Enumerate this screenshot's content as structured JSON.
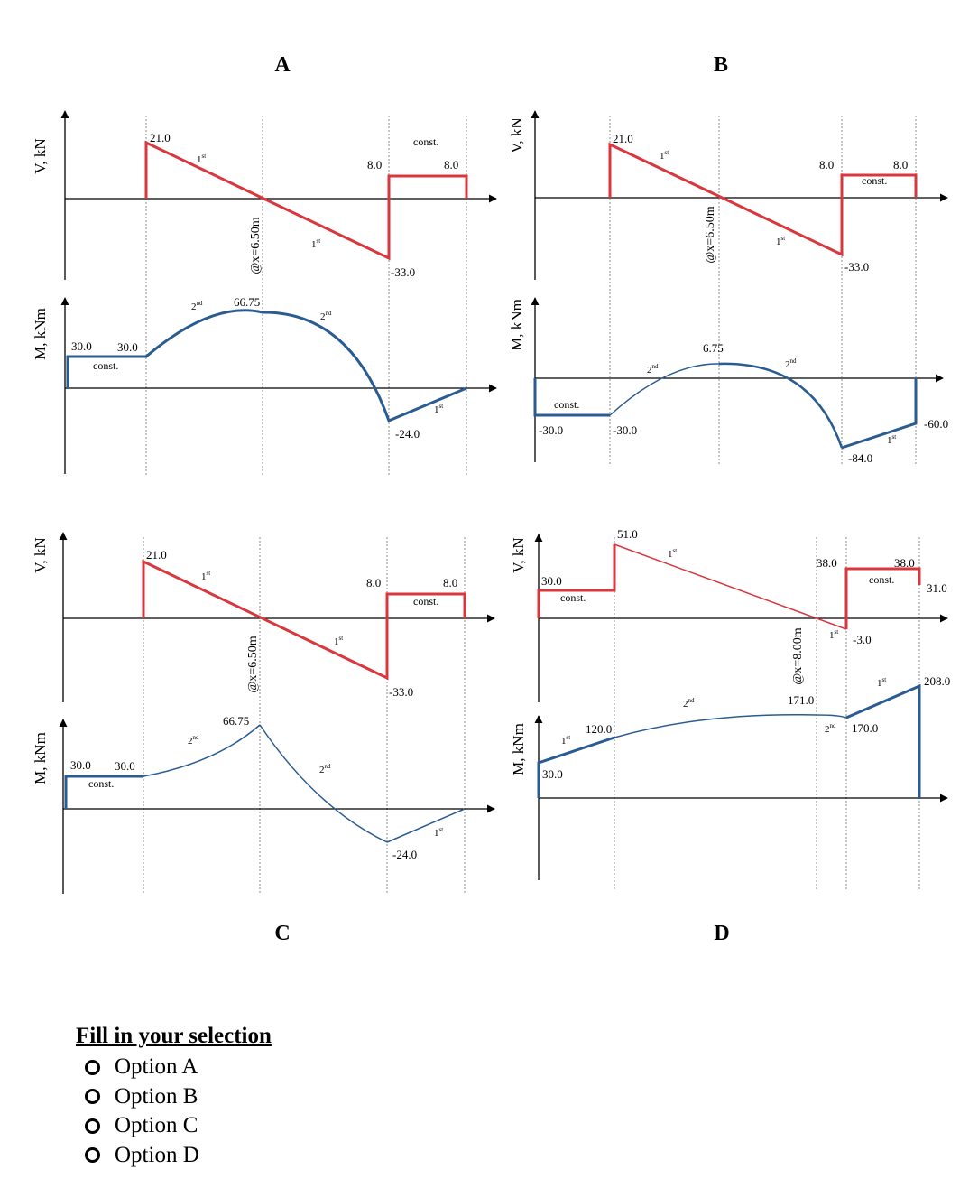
{
  "options": {
    "A": {
      "title": "A",
      "shear": {
        "axis_label": "V, kN",
        "labels": {
          "v1": "21.0",
          "deg1": "1",
          "deg2": "1",
          "v8a": "8.0",
          "v8b": "8.0",
          "vneg": "-33.0",
          "const": "const."
        },
        "xlabel": "@x=6.50m"
      },
      "moment": {
        "axis_label": "M, kNm",
        "labels": {
          "m1": "30.0",
          "m2": "30.0",
          "const": "const.",
          "max": "66.75",
          "deg_a": "2",
          "deg_b": "2",
          "deg_c": "1",
          "min": "-24.0"
        }
      }
    },
    "B": {
      "title": "B",
      "shear": {
        "axis_label": "V, kN",
        "labels": {
          "v1": "21.0",
          "deg1": "1",
          "deg2": "1",
          "v8a": "8.0",
          "v8b": "8.0",
          "vneg": "-33.0",
          "const": "const."
        },
        "xlabel": "@x=6.50m"
      },
      "moment": {
        "axis_label": "M, kNm",
        "labels": {
          "const": "const.",
          "m1": "-30.0",
          "m2": "-30.0",
          "max": "6.75",
          "deg_a": "2",
          "deg_b": "2",
          "min": "-84.0",
          "deg_c": "1",
          "end": "-60.0"
        }
      }
    },
    "C": {
      "title": "C",
      "shear": {
        "axis_label": "V, kN",
        "labels": {
          "v1": "21.0",
          "deg1": "1",
          "deg2": "1",
          "v8a": "8.0",
          "v8b": "8.0",
          "vneg": "-33.0",
          "const": "const."
        },
        "xlabel": "@x=6.50m"
      },
      "moment": {
        "axis_label": "M, kNm",
        "labels": {
          "m1": "30.0",
          "m2": "30.0",
          "const": "const.",
          "max": "66.75",
          "deg_a": "2",
          "deg_b": "2",
          "deg_c": "1",
          "min": "-24.0"
        }
      }
    },
    "D": {
      "title": "D",
      "shear": {
        "axis_label": "V, kN",
        "labels": {
          "v30": "30.0",
          "const": "const.",
          "v51": "51.0",
          "deg1": "1",
          "v38a": "38.0",
          "v38b": "38.0",
          "const2": "const.",
          "v31": "31.0",
          "deg2": "1",
          "vneg": "-3.0"
        },
        "xlabel": "@x=8.00m"
      },
      "moment": {
        "axis_label": "M, kNm",
        "labels": {
          "m30": "30.0",
          "deg_a": "1",
          "m120": "120.0",
          "deg_b": "2",
          "m171": "171.0",
          "deg_c": "2",
          "m170": "170.0",
          "deg_d": "1",
          "m208": "208.0"
        }
      }
    }
  },
  "ordinals": {
    "first": "st",
    "second": "nd"
  },
  "selection": {
    "title": "Fill in your selection",
    "options": [
      "Option A",
      "Option B",
      "Option C",
      "Option D"
    ]
  },
  "colors": {
    "shear": "#d9363e",
    "moment": "#2a5c92",
    "axis": "#000000",
    "guide": "#888888"
  }
}
